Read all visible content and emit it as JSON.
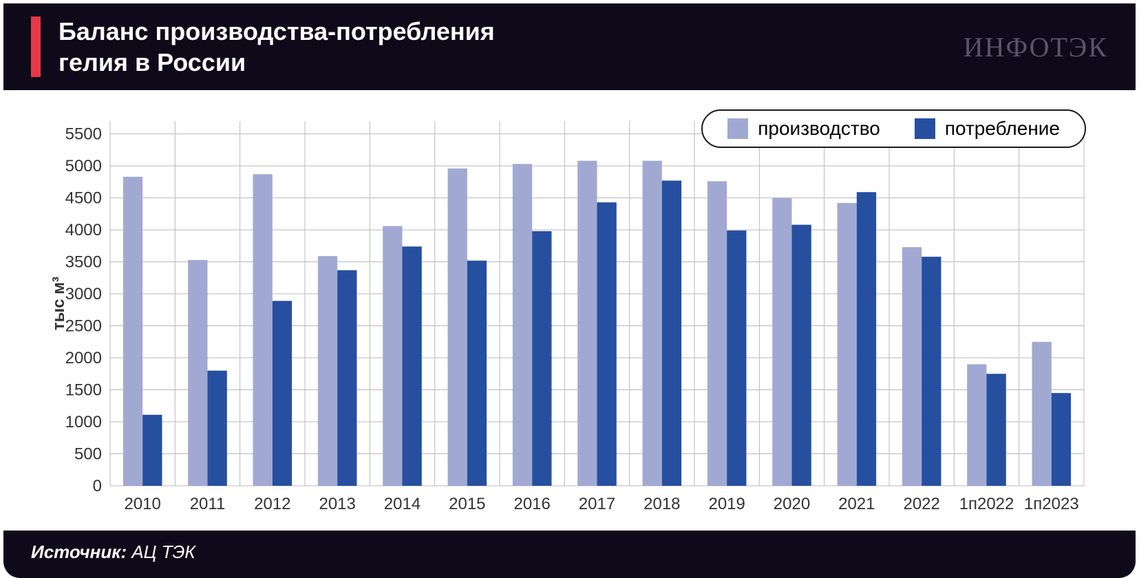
{
  "header": {
    "title_line1": "Баланс производства-потребления",
    "title_line2": "гелия в России",
    "logo_text": "ИНФОТЭК",
    "bg_color": "#0e0a1a",
    "title_color": "#ffffff",
    "red_bar_color": "#e63946",
    "logo_color": "#5a5566"
  },
  "chart": {
    "type": "bar",
    "ylabel": "тыс м³",
    "ylim": [
      0,
      5700
    ],
    "yticks": [
      0,
      500,
      1000,
      1500,
      2000,
      2500,
      3000,
      3500,
      4000,
      4500,
      5000,
      5500
    ],
    "categories": [
      "2010",
      "2011",
      "2012",
      "2013",
      "2014",
      "2015",
      "2016",
      "2017",
      "2018",
      "2019",
      "2020",
      "2021",
      "2022",
      "1п2022",
      "1п2023"
    ],
    "series": [
      {
        "key": "production",
        "label": "производство",
        "color": "#a1a9d3",
        "values": [
          4830,
          3530,
          4870,
          3590,
          4060,
          4960,
          5030,
          5080,
          5080,
          4760,
          4500,
          4420,
          3730,
          1900,
          2250
        ]
      },
      {
        "key": "consumption",
        "label": "потребление",
        "color": "#264fa0",
        "values": [
          1110,
          1800,
          2890,
          3370,
          3740,
          3520,
          3980,
          4430,
          4770,
          3990,
          4080,
          4590,
          3580,
          1750,
          1450
        ]
      }
    ],
    "grid_color": "#b8b8b8",
    "axis_color": "#333333",
    "bar_group_width_ratio": 0.6,
    "bar_gap_ratio": 0.0,
    "background_color": "#ffffff",
    "tick_font_size": 24,
    "ylabel_font_size": 24,
    "legend_font_size": 28,
    "legend_border_color": "#1a1a1a"
  },
  "footer": {
    "label": "Источник:",
    "value": " АЦ ТЭК",
    "bg_color": "#0e0a1a",
    "text_color": "#ffffff"
  }
}
